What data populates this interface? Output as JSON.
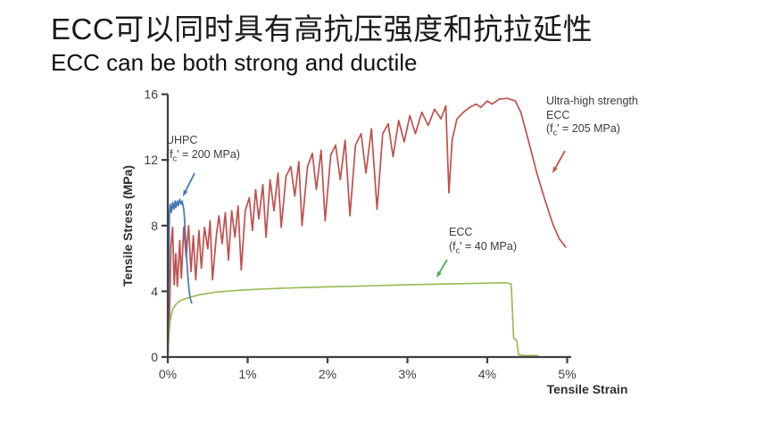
{
  "slide": {
    "title_zh": "ECC可以同时具有高抗压强度和抗拉延性",
    "title_en": "ECC can be both strong and ductile"
  },
  "chart_data": {
    "type": "line",
    "title": "",
    "xlabel": "Tensile Strain",
    "ylabel": "Tensile Stress (MPa)",
    "xlim": [
      0,
      5.05
    ],
    "ylim": [
      0,
      16
    ],
    "x_ticks": [
      "0%",
      "1%",
      "2%",
      "3%",
      "4%",
      "5%"
    ],
    "x_tick_values": [
      0,
      1,
      2,
      3,
      4,
      5
    ],
    "y_ticks": [
      "0",
      "4",
      "8",
      "12",
      "16"
    ],
    "y_tick_values": [
      0,
      4,
      8,
      12,
      16
    ],
    "grid": false,
    "legend": "none (arrow annotations on plot)",
    "axis_color": "#404040",
    "series": [
      {
        "name": "Ultra-high strength ECC",
        "color": "#c0504d",
        "points": [
          [
            0,
            0
          ],
          [
            0.02,
            2.2
          ],
          [
            0.04,
            6.8
          ],
          [
            0.06,
            7.9
          ],
          [
            0.08,
            4.4
          ],
          [
            0.1,
            6.3
          ],
          [
            0.12,
            4.3
          ],
          [
            0.15,
            7.1
          ],
          [
            0.17,
            4.8
          ],
          [
            0.2,
            7.9
          ],
          [
            0.23,
            6.1
          ],
          [
            0.26,
            8.0
          ],
          [
            0.29,
            5.2
          ],
          [
            0.32,
            7.4
          ],
          [
            0.35,
            4.7
          ],
          [
            0.39,
            7.7
          ],
          [
            0.42,
            5.4
          ],
          [
            0.46,
            7.9
          ],
          [
            0.5,
            6.6
          ],
          [
            0.53,
            8.3
          ],
          [
            0.56,
            4.7
          ],
          [
            0.61,
            7.5
          ],
          [
            0.64,
            8.6
          ],
          [
            0.68,
            6.9
          ],
          [
            0.72,
            8.8
          ],
          [
            0.76,
            5.9
          ],
          [
            0.8,
            8.9
          ],
          [
            0.84,
            7.3
          ],
          [
            0.88,
            9.2
          ],
          [
            0.92,
            5.3
          ],
          [
            0.97,
            8.9
          ],
          [
            1.02,
            9.7
          ],
          [
            1.06,
            7.7
          ],
          [
            1.1,
            10.2
          ],
          [
            1.14,
            8.4
          ],
          [
            1.19,
            10.5
          ],
          [
            1.23,
            7.3
          ],
          [
            1.28,
            10.8
          ],
          [
            1.33,
            8.9
          ],
          [
            1.38,
            11.2
          ],
          [
            1.42,
            7.9
          ],
          [
            1.48,
            11.0
          ],
          [
            1.54,
            11.6
          ],
          [
            1.59,
            9.8
          ],
          [
            1.64,
            11.9
          ],
          [
            1.68,
            8.0
          ],
          [
            1.75,
            11.6
          ],
          [
            1.81,
            12.4
          ],
          [
            1.86,
            10.2
          ],
          [
            1.92,
            12.6
          ],
          [
            1.97,
            8.3
          ],
          [
            2.04,
            12.3
          ],
          [
            2.1,
            12.9
          ],
          [
            2.16,
            10.8
          ],
          [
            2.22,
            13.2
          ],
          [
            2.28,
            8.6
          ],
          [
            2.35,
            12.9
          ],
          [
            2.42,
            13.6
          ],
          [
            2.48,
            11.2
          ],
          [
            2.55,
            13.9
          ],
          [
            2.62,
            9.0
          ],
          [
            2.69,
            13.6
          ],
          [
            2.76,
            14.2
          ],
          [
            2.82,
            12.2
          ],
          [
            2.89,
            14.4
          ],
          [
            2.96,
            13.1
          ],
          [
            3.03,
            14.7
          ],
          [
            3.1,
            13.6
          ],
          [
            3.18,
            14.9
          ],
          [
            3.26,
            14.1
          ],
          [
            3.34,
            15.1
          ],
          [
            3.42,
            14.5
          ],
          [
            3.48,
            15.3
          ],
          [
            3.52,
            10.0
          ],
          [
            3.56,
            13.2
          ],
          [
            3.62,
            14.5
          ],
          [
            3.7,
            14.9
          ],
          [
            3.78,
            15.2
          ],
          [
            3.86,
            15.4
          ],
          [
            3.92,
            15.2
          ],
          [
            4.0,
            15.6
          ],
          [
            4.06,
            15.4
          ],
          [
            4.15,
            15.7
          ],
          [
            4.25,
            15.75
          ],
          [
            4.35,
            15.6
          ],
          [
            4.42,
            14.9
          ],
          [
            4.52,
            13.1
          ],
          [
            4.62,
            11.2
          ],
          [
            4.72,
            9.6
          ],
          [
            4.82,
            8.1
          ],
          [
            4.9,
            7.2
          ],
          [
            4.98,
            6.7
          ]
        ]
      },
      {
        "name": "ECC",
        "color": "#9bbb59",
        "points": [
          [
            0,
            0
          ],
          [
            0.01,
            1.1
          ],
          [
            0.03,
            2.2
          ],
          [
            0.06,
            2.9
          ],
          [
            0.1,
            3.2
          ],
          [
            0.16,
            3.45
          ],
          [
            0.25,
            3.6
          ],
          [
            0.4,
            3.8
          ],
          [
            0.6,
            3.95
          ],
          [
            0.85,
            4.05
          ],
          [
            1.1,
            4.12
          ],
          [
            1.5,
            4.2
          ],
          [
            2.0,
            4.27
          ],
          [
            2.5,
            4.33
          ],
          [
            3.0,
            4.4
          ],
          [
            3.5,
            4.45
          ],
          [
            4.0,
            4.5
          ],
          [
            4.22,
            4.52
          ],
          [
            4.3,
            4.45
          ],
          [
            4.33,
            1.15
          ],
          [
            4.37,
            1.0
          ],
          [
            4.39,
            0.15
          ],
          [
            4.45,
            0.1
          ],
          [
            4.63,
            0.08
          ]
        ]
      },
      {
        "name": "UHPC",
        "color": "#4576b5",
        "points": [
          [
            0,
            0
          ],
          [
            0.01,
            3.5
          ],
          [
            0.02,
            8.7
          ],
          [
            0.03,
            9.3
          ],
          [
            0.045,
            8.8
          ],
          [
            0.06,
            9.4
          ],
          [
            0.075,
            9.0
          ],
          [
            0.09,
            9.5
          ],
          [
            0.1,
            9.1
          ],
          [
            0.12,
            9.5
          ],
          [
            0.13,
            9.2
          ],
          [
            0.15,
            9.6
          ],
          [
            0.165,
            9.3
          ],
          [
            0.18,
            9.5
          ],
          [
            0.2,
            9.0
          ],
          [
            0.21,
            8.4
          ],
          [
            0.225,
            7.0
          ],
          [
            0.24,
            5.7
          ],
          [
            0.255,
            4.7
          ],
          [
            0.27,
            3.9
          ],
          [
            0.285,
            3.5
          ],
          [
            0.3,
            3.3
          ]
        ]
      }
    ],
    "annotations": {
      "uhpc": {
        "line1": "UHPC",
        "f_open": "(f",
        "f_sub": "c",
        "f_rest": "' = 200 MPa)",
        "arrow_color": "#4576b5"
      },
      "ultra": {
        "line1": "Ultra-high strength",
        "line2": "ECC",
        "f_open": "(f",
        "f_sub": "c",
        "f_rest": "' = 205 MPa)",
        "arrow_color": "#c0504d"
      },
      "ecc": {
        "line1": "ECC",
        "f_open": "(f",
        "f_sub": "c",
        "f_rest": "' = 40 MPa)",
        "arrow_color": "#4ead5b"
      }
    }
  }
}
